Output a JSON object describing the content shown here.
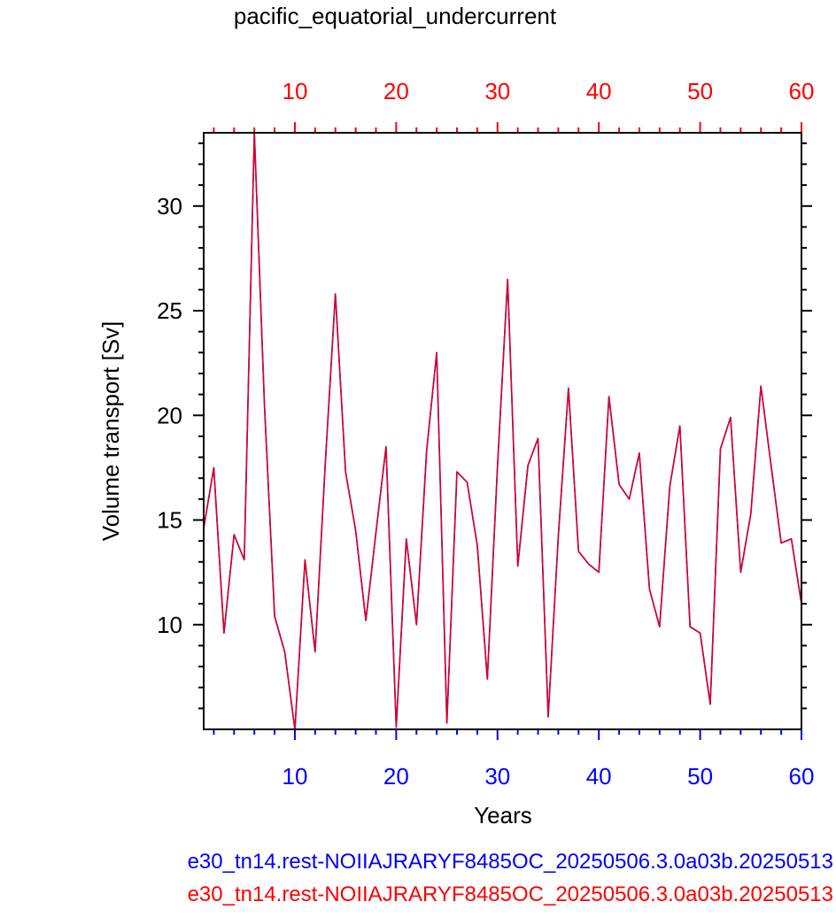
{
  "chart_data": {
    "type": "line",
    "title": "pacific_equatorial_undercurrent",
    "xlabel": "Years",
    "ylabel": "Volume transport [Sv]",
    "xlim": [
      1,
      60
    ],
    "ylim": [
      5,
      33.5
    ],
    "x_ticks": [
      10,
      20,
      30,
      40,
      50,
      60
    ],
    "y_ticks": [
      10,
      15,
      20,
      25,
      30
    ],
    "top_axis_color": "#ff0000",
    "bottom_axis_color": "#0000ff",
    "series": [
      {
        "color": "#ff0000",
        "x": [
          1,
          2,
          3,
          4,
          5,
          6,
          7,
          8,
          9,
          10,
          11,
          12,
          13,
          14,
          15,
          16,
          17,
          18,
          19,
          20,
          21,
          22,
          23,
          24,
          25,
          26,
          27,
          28,
          29,
          30,
          31,
          32,
          33,
          34,
          35,
          36,
          37,
          38,
          39,
          40,
          41,
          42,
          43,
          44,
          45,
          46,
          47,
          48,
          49,
          50,
          51,
          52,
          53,
          54,
          55,
          56,
          57,
          58,
          59,
          60
        ],
        "values": [
          14.6,
          17.5,
          9.6,
          14.3,
          13.1,
          33.5,
          20.5,
          10.4,
          8.7,
          5.0,
          13.1,
          8.7,
          17.7,
          25.8,
          17.3,
          14.5,
          10.2,
          14.4,
          18.5,
          5.1,
          14.1,
          10.0,
          18.3,
          23.0,
          5.3,
          17.3,
          16.8,
          13.8,
          7.4,
          17.6,
          26.5,
          12.8,
          17.6,
          18.9,
          5.6,
          14.2,
          21.3,
          13.5,
          12.9,
          12.5,
          20.9,
          16.7,
          16.0,
          18.2,
          11.7,
          9.9,
          16.6,
          19.5,
          9.9,
          9.6,
          6.2,
          18.4,
          19.9,
          12.5,
          15.3,
          21.4,
          17.6,
          13.9,
          14.1,
          11.0
        ]
      },
      {
        "color": "#0000ff",
        "x": [
          1,
          2,
          3,
          4,
          5,
          6,
          7,
          8,
          9,
          10,
          11,
          12,
          13,
          14,
          15,
          16,
          17,
          18,
          19,
          20,
          21,
          22,
          23,
          24,
          25,
          26,
          27,
          28,
          29,
          30,
          31,
          32,
          33,
          34,
          35,
          36,
          37,
          38,
          39,
          40,
          41,
          42,
          43,
          44,
          45,
          46,
          47,
          48,
          49,
          50,
          51,
          52,
          53,
          54,
          55,
          56,
          57,
          58,
          59,
          60
        ],
        "values": [
          14.6,
          17.5,
          9.6,
          14.3,
          13.1,
          33.5,
          20.5,
          10.4,
          8.7,
          5.0,
          13.1,
          8.7,
          17.7,
          25.8,
          17.3,
          14.5,
          10.2,
          14.4,
          18.5,
          5.1,
          14.1,
          10.0,
          18.3,
          23.0,
          5.3,
          17.3,
          16.8,
          13.8,
          7.4,
          17.6,
          26.5,
          12.8,
          17.6,
          18.9,
          5.6,
          14.2,
          21.3,
          13.5,
          12.9,
          12.5,
          20.9,
          16.7,
          16.0,
          18.2,
          11.7,
          9.9,
          16.6,
          19.5,
          9.9,
          9.6,
          6.2,
          18.4,
          19.9,
          12.5,
          15.3,
          21.4,
          17.6,
          13.9,
          14.1,
          11.0
        ]
      }
    ],
    "captions": [
      {
        "text": "e30_tn14.rest-NOIIAJRARYF8485OC_20250506.3.0a03b.20250513",
        "color": "#0000ff"
      },
      {
        "text": "e30_tn14.rest-NOIIAJRARYF8485OC_20250506.3.0a03b.20250513",
        "color": "#ff0000"
      }
    ]
  }
}
